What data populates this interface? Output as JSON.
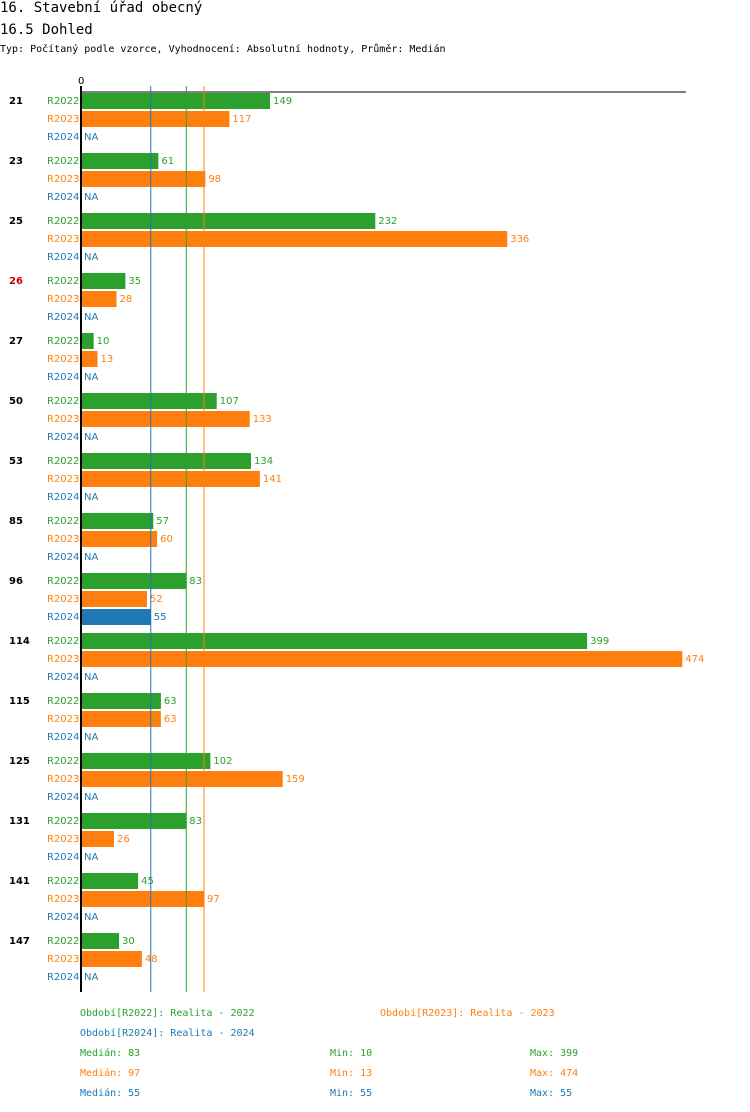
{
  "header": {
    "title": "16. Stavební úřad obecný",
    "section": "16.5 Dohled",
    "subtitle": "Typ: Počítaný podle vzorce, Vyhodnocení: Absolutní hodnoty, Průměr: Medián"
  },
  "colors": {
    "R2022": "#2ca02c",
    "R2023": "#ff7f0e",
    "R2024": "#1f77b4",
    "highlight": "#cc0000",
    "axis": "#000000"
  },
  "chart_data": {
    "type": "bar",
    "orientation": "horizontal",
    "axis_zero_label": "0",
    "xlim": [
      0,
      474
    ],
    "categories": [
      "21",
      "23",
      "25",
      "26",
      "27",
      "50",
      "53",
      "85",
      "96",
      "114",
      "115",
      "125",
      "131",
      "141",
      "147"
    ],
    "highlighted_categories": [
      "26"
    ],
    "na_label": "NA",
    "series": [
      {
        "name": "R2022",
        "values": [
          149,
          61,
          232,
          35,
          10,
          107,
          134,
          57,
          83,
          399,
          63,
          102,
          83,
          45,
          30
        ]
      },
      {
        "name": "R2023",
        "values": [
          117,
          98,
          336,
          28,
          13,
          133,
          141,
          60,
          52,
          474,
          63,
          159,
          26,
          97,
          48
        ]
      },
      {
        "name": "R2024",
        "values": [
          null,
          null,
          null,
          null,
          null,
          null,
          null,
          null,
          55,
          null,
          null,
          null,
          null,
          null,
          null
        ]
      }
    ],
    "median_lines": [
      {
        "series": "R2022",
        "value": 83
      },
      {
        "series": "R2023",
        "value": 97
      },
      {
        "series": "R2024",
        "value": 55
      }
    ]
  },
  "legend": {
    "periods": [
      {
        "series": "R2022",
        "label": "Období[R2022]: Realita - 2022"
      },
      {
        "series": "R2023",
        "label": "Období[R2023]: Realita - 2023"
      },
      {
        "series": "R2024",
        "label": "Období[R2024]: Realita - 2024"
      }
    ],
    "stats": [
      {
        "series": "R2022",
        "median": "Medián: 83",
        "min": "Min: 10",
        "max": "Max: 399"
      },
      {
        "series": "R2023",
        "median": "Medián: 97",
        "min": "Min: 13",
        "max": "Max: 474"
      },
      {
        "series": "R2024",
        "median": "Medián: 55",
        "min": "Min: 55",
        "max": "Max: 55"
      }
    ]
  }
}
